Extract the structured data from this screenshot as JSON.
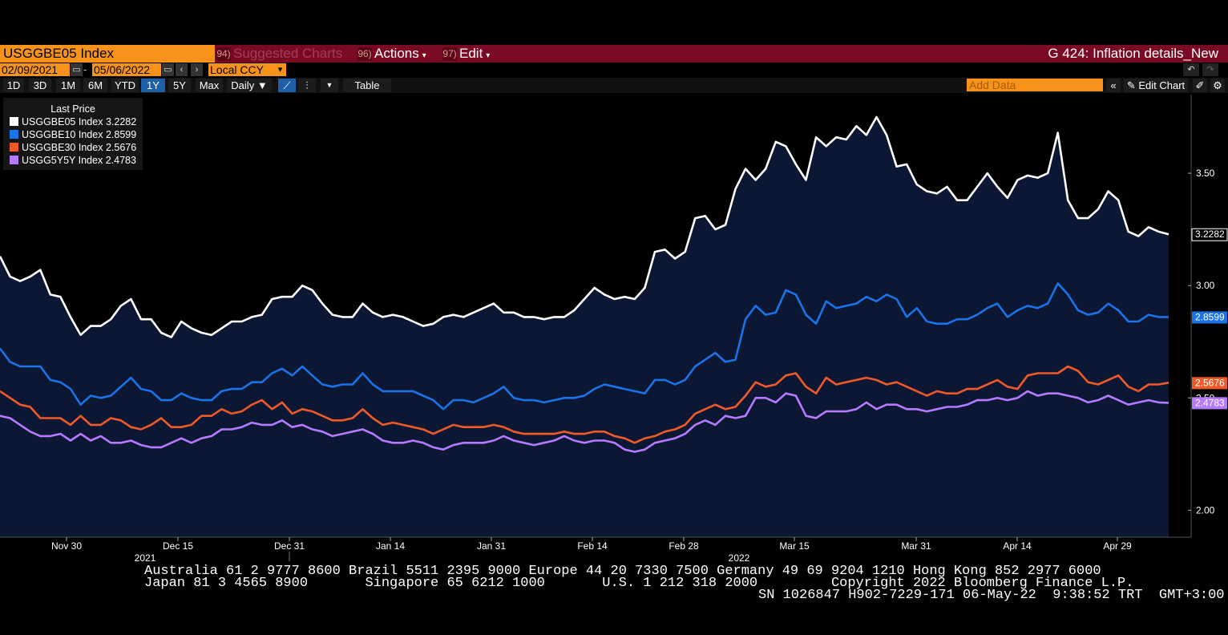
{
  "header": {
    "ticker": "USGGBE05 Index",
    "menu": [
      {
        "num": "94)",
        "label": "Suggested Charts"
      },
      {
        "num": "96)",
        "label": "Actions"
      },
      {
        "num": "97)",
        "label": "Edit"
      }
    ],
    "page_title": "G 424: Inflation details_New"
  },
  "controls": {
    "start_date": "02/09/2021",
    "end_date": "05/06/2022",
    "currency": "Local CCY",
    "ranges": [
      "1D",
      "3D",
      "1M",
      "6M",
      "YTD",
      "1Y",
      "5Y",
      "Max"
    ],
    "active_range": "1Y",
    "frequency": "Daily",
    "table_label": "Table",
    "add_data_placeholder": "Add Data",
    "edit_chart_label": "Edit Chart"
  },
  "legend": {
    "header": "Last Price",
    "items": [
      {
        "label": "USGGBE05 Index",
        "value": "3.2282",
        "color": "#ffffff"
      },
      {
        "label": "USGGBE10 Index",
        "value": "2.8599",
        "color": "#1a73e8"
      },
      {
        "label": "USGGBE30 Index",
        "value": "2.5676",
        "color": "#f05a28"
      },
      {
        "label": "USGG5Y5Y Index",
        "value": "2.4783",
        "color": "#b57aff"
      }
    ]
  },
  "chart_data": {
    "type": "line",
    "x_tick_labels": [
      "Nov 30",
      "Dec 15",
      "Dec 31",
      "Jan 14",
      "Jan 31",
      "Feb 14",
      "Feb 28",
      "Mar 15",
      "Mar 31",
      "Apr 14",
      "Apr 29"
    ],
    "year_labels": [
      {
        "label": "2021",
        "after": "Nov 30"
      },
      {
        "label": "2022",
        "after": "Feb 28"
      }
    ],
    "y_ticks": [
      2.0,
      2.5,
      3.0,
      3.5
    ],
    "ylim": [
      1.88,
      3.85
    ],
    "grid": false,
    "legend_position": "top-left",
    "series": [
      {
        "name": "USGGBE05 Index",
        "color": "#ffffff",
        "last": 3.2282,
        "fill": true,
        "values": [
          3.13,
          3.04,
          3.02,
          3.04,
          3.07,
          2.96,
          2.95,
          2.86,
          2.78,
          2.82,
          2.82,
          2.85,
          2.91,
          2.94,
          2.85,
          2.85,
          2.79,
          2.77,
          2.84,
          2.81,
          2.79,
          2.78,
          2.81,
          2.84,
          2.84,
          2.86,
          2.87,
          2.94,
          2.95,
          2.95,
          3.0,
          2.98,
          2.92,
          2.87,
          2.86,
          2.86,
          2.92,
          2.88,
          2.86,
          2.87,
          2.86,
          2.84,
          2.82,
          2.83,
          2.86,
          2.87,
          2.86,
          2.88,
          2.9,
          2.92,
          2.88,
          2.88,
          2.86,
          2.86,
          2.85,
          2.86,
          2.86,
          2.89,
          2.94,
          2.99,
          2.96,
          2.94,
          2.95,
          2.94,
          2.99,
          3.15,
          3.16,
          3.12,
          3.15,
          3.3,
          3.31,
          3.25,
          3.27,
          3.43,
          3.52,
          3.47,
          3.52,
          3.64,
          3.62,
          3.54,
          3.47,
          3.66,
          3.62,
          3.66,
          3.65,
          3.71,
          3.67,
          3.75,
          3.67,
          3.53,
          3.54,
          3.45,
          3.42,
          3.41,
          3.44,
          3.38,
          3.38,
          3.44,
          3.5,
          3.44,
          3.39,
          3.47,
          3.49,
          3.48,
          3.5,
          3.68,
          3.38,
          3.3,
          3.3,
          3.34,
          3.42,
          3.38,
          3.24,
          3.22,
          3.26,
          3.24,
          3.2282
        ]
      },
      {
        "name": "USGGBE10 Index",
        "color": "#1a73e8",
        "last": 2.8599,
        "values": [
          2.72,
          2.66,
          2.64,
          2.64,
          2.64,
          2.58,
          2.57,
          2.54,
          2.47,
          2.51,
          2.5,
          2.51,
          2.55,
          2.59,
          2.54,
          2.53,
          2.49,
          2.49,
          2.52,
          2.5,
          2.49,
          2.49,
          2.53,
          2.54,
          2.54,
          2.57,
          2.57,
          2.61,
          2.63,
          2.6,
          2.64,
          2.6,
          2.56,
          2.55,
          2.56,
          2.56,
          2.61,
          2.56,
          2.53,
          2.53,
          2.53,
          2.53,
          2.51,
          2.49,
          2.45,
          2.49,
          2.49,
          2.48,
          2.5,
          2.52,
          2.55,
          2.5,
          2.49,
          2.49,
          2.48,
          2.49,
          2.5,
          2.5,
          2.51,
          2.54,
          2.56,
          2.55,
          2.54,
          2.53,
          2.52,
          2.58,
          2.58,
          2.56,
          2.58,
          2.64,
          2.67,
          2.7,
          2.66,
          2.67,
          2.85,
          2.91,
          2.87,
          2.88,
          2.98,
          2.96,
          2.87,
          2.83,
          2.93,
          2.9,
          2.91,
          2.92,
          2.95,
          2.93,
          2.96,
          2.94,
          2.86,
          2.9,
          2.84,
          2.83,
          2.83,
          2.85,
          2.85,
          2.87,
          2.9,
          2.92,
          2.86,
          2.89,
          2.91,
          2.9,
          2.92,
          3.01,
          2.96,
          2.89,
          2.87,
          2.88,
          2.92,
          2.89,
          2.84,
          2.84,
          2.87,
          2.86,
          2.8599
        ]
      },
      {
        "name": "USGGBE30 Index",
        "color": "#f05a28",
        "last": 2.5676,
        "values": [
          2.53,
          2.5,
          2.47,
          2.46,
          2.41,
          2.41,
          2.41,
          2.38,
          2.42,
          2.38,
          2.38,
          2.41,
          2.4,
          2.37,
          2.36,
          2.38,
          2.41,
          2.37,
          2.37,
          2.38,
          2.42,
          2.42,
          2.45,
          2.43,
          2.44,
          2.47,
          2.49,
          2.45,
          2.48,
          2.43,
          2.45,
          2.44,
          2.42,
          2.4,
          2.4,
          2.41,
          2.45,
          2.41,
          2.38,
          2.39,
          2.38,
          2.37,
          2.36,
          2.34,
          2.36,
          2.38,
          2.37,
          2.37,
          2.37,
          2.38,
          2.37,
          2.35,
          2.34,
          2.34,
          2.34,
          2.34,
          2.35,
          2.34,
          2.34,
          2.35,
          2.35,
          2.33,
          2.32,
          2.3,
          2.32,
          2.33,
          2.35,
          2.36,
          2.38,
          2.43,
          2.45,
          2.47,
          2.45,
          2.46,
          2.51,
          2.57,
          2.55,
          2.56,
          2.6,
          2.61,
          2.55,
          2.52,
          2.59,
          2.56,
          2.57,
          2.58,
          2.59,
          2.58,
          2.56,
          2.57,
          2.55,
          2.53,
          2.51,
          2.53,
          2.52,
          2.52,
          2.54,
          2.54,
          2.56,
          2.58,
          2.55,
          2.54,
          2.6,
          2.61,
          2.61,
          2.61,
          2.64,
          2.62,
          2.57,
          2.56,
          2.58,
          2.6,
          2.55,
          2.53,
          2.56,
          2.56,
          2.5676
        ]
      },
      {
        "name": "USGG5Y5Y Index",
        "color": "#b57aff",
        "last": 2.4783,
        "values": [
          2.42,
          2.41,
          2.38,
          2.35,
          2.33,
          2.33,
          2.34,
          2.31,
          2.34,
          2.31,
          2.33,
          2.3,
          2.3,
          2.31,
          2.29,
          2.28,
          2.28,
          2.3,
          2.32,
          2.3,
          2.32,
          2.33,
          2.36,
          2.36,
          2.37,
          2.39,
          2.38,
          2.38,
          2.4,
          2.37,
          2.38,
          2.36,
          2.35,
          2.33,
          2.34,
          2.35,
          2.36,
          2.34,
          2.31,
          2.3,
          2.3,
          2.31,
          2.3,
          2.28,
          2.27,
          2.29,
          2.3,
          2.3,
          2.3,
          2.31,
          2.33,
          2.31,
          2.3,
          2.29,
          2.3,
          2.31,
          2.33,
          2.31,
          2.3,
          2.31,
          2.31,
          2.3,
          2.27,
          2.26,
          2.27,
          2.3,
          2.31,
          2.32,
          2.34,
          2.38,
          2.4,
          2.38,
          2.42,
          2.41,
          2.42,
          2.5,
          2.5,
          2.48,
          2.52,
          2.51,
          2.42,
          2.41,
          2.44,
          2.44,
          2.44,
          2.45,
          2.48,
          2.45,
          2.47,
          2.47,
          2.45,
          2.45,
          2.44,
          2.45,
          2.46,
          2.46,
          2.47,
          2.49,
          2.49,
          2.5,
          2.49,
          2.5,
          2.53,
          2.51,
          2.52,
          2.52,
          2.51,
          2.5,
          2.48,
          2.49,
          2.51,
          2.49,
          2.47,
          2.48,
          2.49,
          2.48,
          2.4783
        ]
      }
    ]
  },
  "footer": {
    "line1": "Australia 61 2 9777 8600 Brazil 5511 2395 9000 Europe 44 20 7330 7500 Germany 49 69 9204 1210 Hong Kong 852 2977 6000",
    "line2": "Japan 81 3 4565 8900       Singapore 65 6212 1000       U.S. 1 212 318 2000         Copyright 2022 Bloomberg Finance L.P.",
    "line3": "SN 1026847 H902-7229-171 06-May-22  9:38:52 TRT  GMT+3:00"
  }
}
